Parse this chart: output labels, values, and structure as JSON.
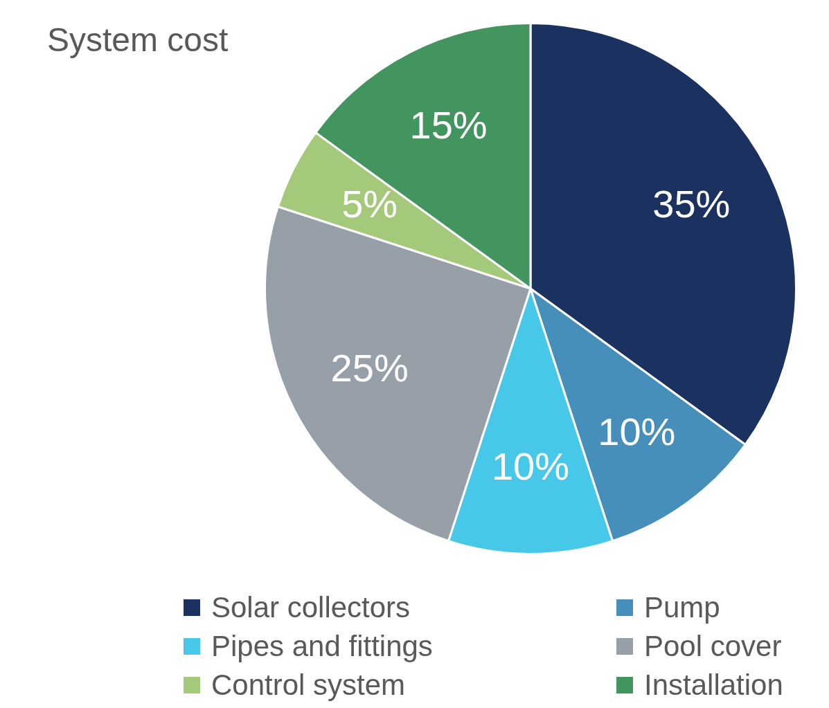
{
  "chart_data": {
    "type": "pie",
    "title": "System cost",
    "categories": [
      "Solar collectors",
      "Pump",
      "Pipes and fittings",
      "Pool cover",
      "Control system",
      "Installation"
    ],
    "values": [
      35,
      10,
      10,
      25,
      5,
      15
    ],
    "value_labels": [
      "35%",
      "10%",
      "10%",
      "25%",
      "5%",
      "15%"
    ],
    "colors": [
      "#1b3160",
      "#468fba",
      "#47c8e8",
      "#97a0a9",
      "#a5c97a",
      "#43955f"
    ],
    "legend": "bottom"
  }
}
